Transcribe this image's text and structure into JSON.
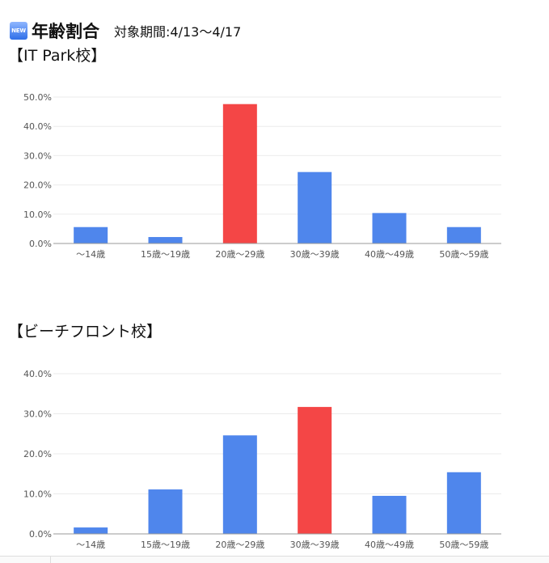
{
  "header": {
    "badge": "NEW",
    "title": "年齢割合",
    "period": "対象期間:4/13〜4/17"
  },
  "colors": {
    "normal": "#4f86ec",
    "highlight": "#f44646",
    "grid": "#ebebeb",
    "axis": "#999999"
  },
  "chart_data": [
    {
      "type": "bar",
      "title": "【IT Park校】",
      "categories": [
        "〜14歳",
        "15歳〜19歳",
        "20歳〜29歳",
        "30歳〜39歳",
        "40歳〜49歳",
        "50歳〜59歳"
      ],
      "values": [
        5.6,
        2.2,
        47.6,
        24.4,
        10.4,
        5.6
      ],
      "highlight_index": 2,
      "ylim": [
        0,
        50
      ],
      "yticks": [
        "0.0%",
        "10.0%",
        "20.0%",
        "30.0%",
        "40.0%",
        "50.0%"
      ],
      "grid": true,
      "legend": false
    },
    {
      "type": "bar",
      "title": "【ビーチフロント校】",
      "categories": [
        "〜14歳",
        "15歳〜19歳",
        "20歳〜29歳",
        "30歳〜39歳",
        "40歳〜49歳",
        "50歳〜59歳"
      ],
      "values": [
        1.6,
        11.1,
        24.6,
        31.7,
        9.5,
        15.4
      ],
      "highlight_index": 3,
      "ylim": [
        0,
        40
      ],
      "yticks": [
        "0.0%",
        "10.0%",
        "20.0%",
        "30.0%",
        "40.0%"
      ],
      "grid": true,
      "legend": false
    }
  ]
}
